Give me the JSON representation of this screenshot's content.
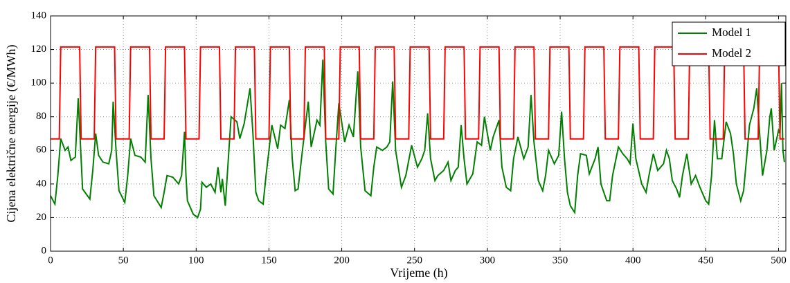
{
  "chart_data": {
    "type": "line",
    "xlabel": "Vrijeme (h)",
    "ylabel": "Cijena električne energije (€/MWh)",
    "xlim": [
      0,
      505
    ],
    "ylim": [
      0,
      140
    ],
    "xticks": [
      0,
      50,
      100,
      150,
      200,
      250,
      300,
      350,
      400,
      450,
      500
    ],
    "yticks": [
      0,
      20,
      40,
      60,
      80,
      100,
      120,
      140
    ],
    "grid": true,
    "legend": "upper right",
    "series": [
      {
        "name": "Model 1",
        "color": "#007f00",
        "x": [
          0,
          3,
          5,
          7,
          10,
          12,
          14,
          17,
          19,
          21,
          22,
          27,
          29,
          31,
          33,
          36,
          40,
          42,
          43,
          45,
          47,
          51,
          53,
          55,
          58,
          62,
          65,
          67,
          69,
          71,
          76,
          78,
          80,
          84,
          88,
          90,
          92,
          93,
          94,
          98,
          101,
          103,
          104,
          107,
          110,
          113,
          115,
          117,
          118,
          120,
          124,
          128,
          130,
          133,
          137,
          139,
          141,
          143,
          146,
          148,
          152,
          156,
          158,
          161,
          164,
          166,
          168,
          170,
          173,
          177,
          179,
          183,
          185,
          187,
          189,
          191,
          194,
          196,
          198,
          202,
          205,
          208,
          211,
          213,
          216,
          220,
          222,
          224,
          228,
          231,
          233,
          235,
          237,
          241,
          244,
          248,
          252,
          255,
          257,
          259,
          261,
          264,
          266,
          270,
          273,
          275,
          278,
          280,
          282,
          284,
          286,
          290,
          293,
          296,
          298,
          300,
          302,
          304,
          308,
          310,
          313,
          316,
          318,
          321,
          325,
          328,
          330,
          332,
          335,
          338,
          340,
          342,
          346,
          349,
          351,
          353,
          355,
          357,
          360,
          362,
          364,
          368,
          370,
          374,
          376,
          378,
          382,
          384,
          386,
          390,
          393,
          396,
          398,
          400,
          402,
          406,
          409,
          411,
          414,
          417,
          421,
          423,
          425,
          427,
          430,
          432,
          434,
          437,
          440,
          443,
          446,
          450,
          452,
          454,
          456,
          458,
          461,
          464,
          467,
          469,
          471,
          474,
          476,
          478,
          480,
          483,
          485,
          487,
          489,
          492,
          494,
          495,
          497,
          500,
          501,
          502,
          503,
          504
        ],
        "values": [
          33,
          28,
          45,
          67,
          60,
          62,
          54,
          56,
          91,
          55,
          37,
          31,
          48,
          70,
          57,
          53,
          52,
          60,
          89,
          60,
          36,
          29,
          45,
          67,
          57,
          56,
          53,
          93,
          55,
          33,
          26,
          35,
          45,
          44,
          40,
          45,
          71,
          45,
          30,
          22,
          20,
          25,
          41,
          38,
          40,
          35,
          50,
          35,
          43,
          27,
          80,
          77,
          67,
          76,
          97,
          70,
          35,
          30,
          28,
          45,
          75,
          61,
          75,
          73,
          90,
          55,
          36,
          37,
          60,
          89,
          62,
          78,
          75,
          114,
          65,
          37,
          34,
          62,
          88,
          65,
          75,
          68,
          107,
          62,
          36,
          33,
          50,
          62,
          60,
          62,
          65,
          101,
          60,
          38,
          45,
          63,
          50,
          55,
          60,
          82,
          55,
          42,
          45,
          48,
          53,
          42,
          48,
          50,
          75,
          55,
          40,
          46,
          65,
          63,
          80,
          70,
          60,
          68,
          78,
          50,
          38,
          36,
          55,
          68,
          55,
          62,
          93,
          65,
          42,
          36,
          45,
          60,
          52,
          57,
          83,
          55,
          35,
          27,
          23,
          45,
          58,
          57,
          46,
          55,
          62,
          40,
          30,
          30,
          45,
          62,
          58,
          55,
          52,
          76,
          55,
          40,
          35,
          45,
          58,
          48,
          52,
          60,
          55,
          42,
          37,
          32,
          45,
          58,
          40,
          45,
          38,
          30,
          28,
          45,
          78,
          55,
          55,
          77,
          70,
          58,
          40,
          30,
          36,
          55,
          75,
          85,
          97,
          70,
          45,
          60,
          80,
          85,
          60,
          72,
          70,
          100,
          60,
          53
        ]
      },
      {
        "name": "Model 2",
        "color": "#ff0000",
        "x": [
          0,
          6,
          7,
          20,
          21,
          30,
          31,
          44,
          45,
          54,
          55,
          68,
          69,
          78,
          79,
          92,
          93,
          102,
          103,
          116,
          117,
          126,
          127,
          140,
          141,
          150,
          151,
          164,
          165,
          174,
          175,
          188,
          189,
          198,
          199,
          212,
          213,
          222,
          223,
          236,
          237,
          246,
          247,
          260,
          261,
          270,
          271,
          284,
          285,
          294,
          295,
          308,
          309,
          318,
          319,
          332,
          333,
          342,
          343,
          356,
          357,
          366,
          367,
          380,
          381,
          390,
          391,
          404,
          405,
          414,
          415,
          428,
          429,
          438,
          439,
          452,
          453,
          462,
          463,
          476,
          477,
          486,
          487,
          500,
          501,
          504
        ],
        "values": [
          66.8,
          66.8,
          121.5,
          121.5,
          66.8,
          66.8,
          121.5,
          121.5,
          66.8,
          66.8,
          121.5,
          121.5,
          66.8,
          66.8,
          121.5,
          121.5,
          66.8,
          66.8,
          121.5,
          121.5,
          66.8,
          66.8,
          121.5,
          121.5,
          66.8,
          66.8,
          121.5,
          121.5,
          66.8,
          66.8,
          121.5,
          121.5,
          66.8,
          66.8,
          121.5,
          121.5,
          66.8,
          66.8,
          121.5,
          121.5,
          66.8,
          66.8,
          121.5,
          121.5,
          66.8,
          66.8,
          121.5,
          121.5,
          66.8,
          66.8,
          121.5,
          121.5,
          66.8,
          66.8,
          121.5,
          121.5,
          66.8,
          66.8,
          121.5,
          121.5,
          66.8,
          66.8,
          121.5,
          121.5,
          66.8,
          66.8,
          121.5,
          121.5,
          66.8,
          66.8,
          121.5,
          121.5,
          66.8,
          66.8,
          121.5,
          121.5,
          66.8,
          66.8,
          121.5,
          121.5,
          66.8,
          66.8,
          121.5,
          121.5,
          66.8,
          66.8
        ]
      }
    ]
  }
}
